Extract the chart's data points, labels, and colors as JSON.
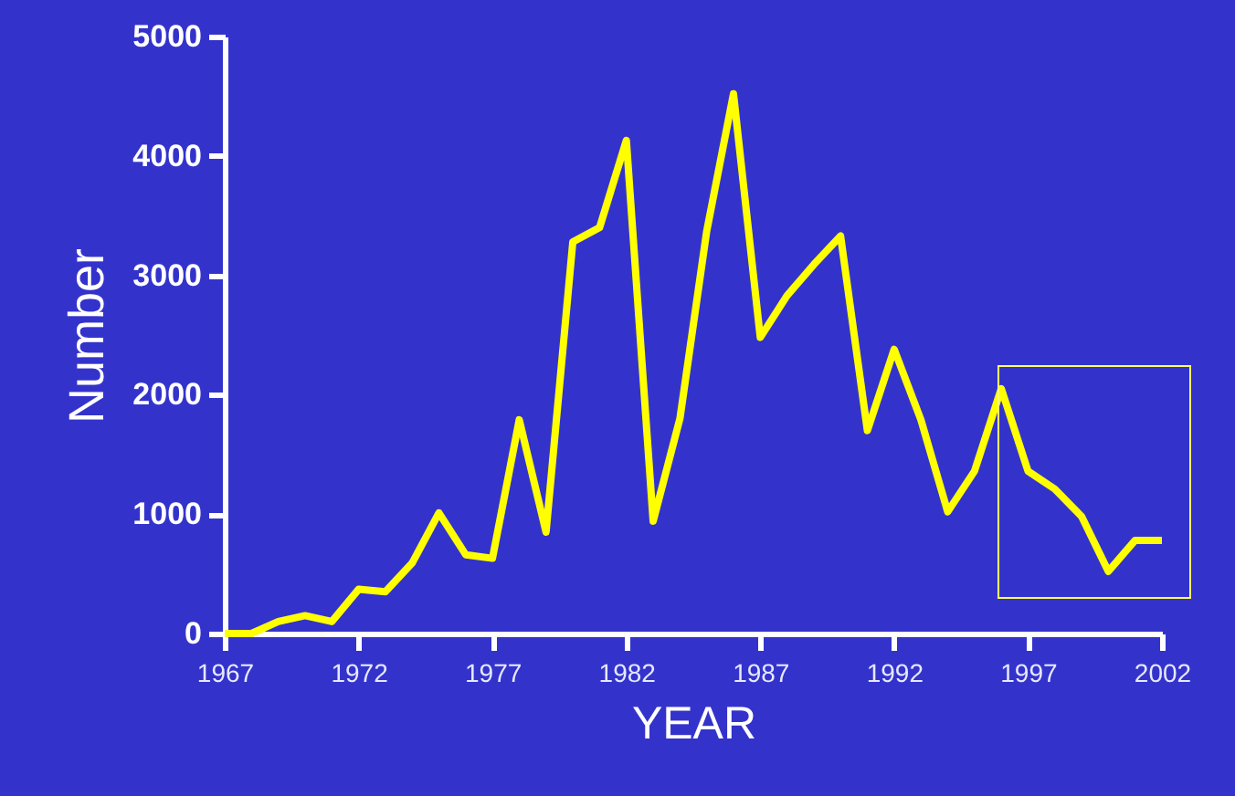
{
  "chart_data": {
    "type": "line",
    "xlabel": "YEAR",
    "ylabel": "Number",
    "x": [
      1967,
      1968,
      1969,
      1970,
      1971,
      1972,
      1973,
      1974,
      1975,
      1976,
      1977,
      1978,
      1979,
      1980,
      1981,
      1982,
      1983,
      1984,
      1985,
      1986,
      1987,
      1988,
      1989,
      1990,
      1991,
      1992,
      1993,
      1994,
      1995,
      1996,
      1997,
      1998,
      1999,
      2000,
      2001,
      2002
    ],
    "series": [
      {
        "color": "#ffff00",
        "values": [
          0,
          0,
          100,
          150,
          100,
          370,
          350,
          590,
          1010,
          660,
          630,
          1790,
          850,
          3280,
          3400,
          4130,
          940,
          1800,
          3370,
          4520,
          2480,
          2830,
          3090,
          3330,
          1700,
          2380,
          1790,
          1020,
          1360,
          2050,
          1360,
          1210,
          980,
          520,
          780,
          780
        ]
      }
    ],
    "xlim": [
      1967,
      2002
    ],
    "xticks": [
      1967,
      1972,
      1977,
      1982,
      1987,
      1992,
      1997,
      2002
    ],
    "ylim": [
      0,
      5000
    ],
    "yticks": [
      0,
      1000,
      2000,
      3000,
      4000,
      5000
    ],
    "grid": false,
    "marker": "none",
    "line_style": "solid"
  }
}
